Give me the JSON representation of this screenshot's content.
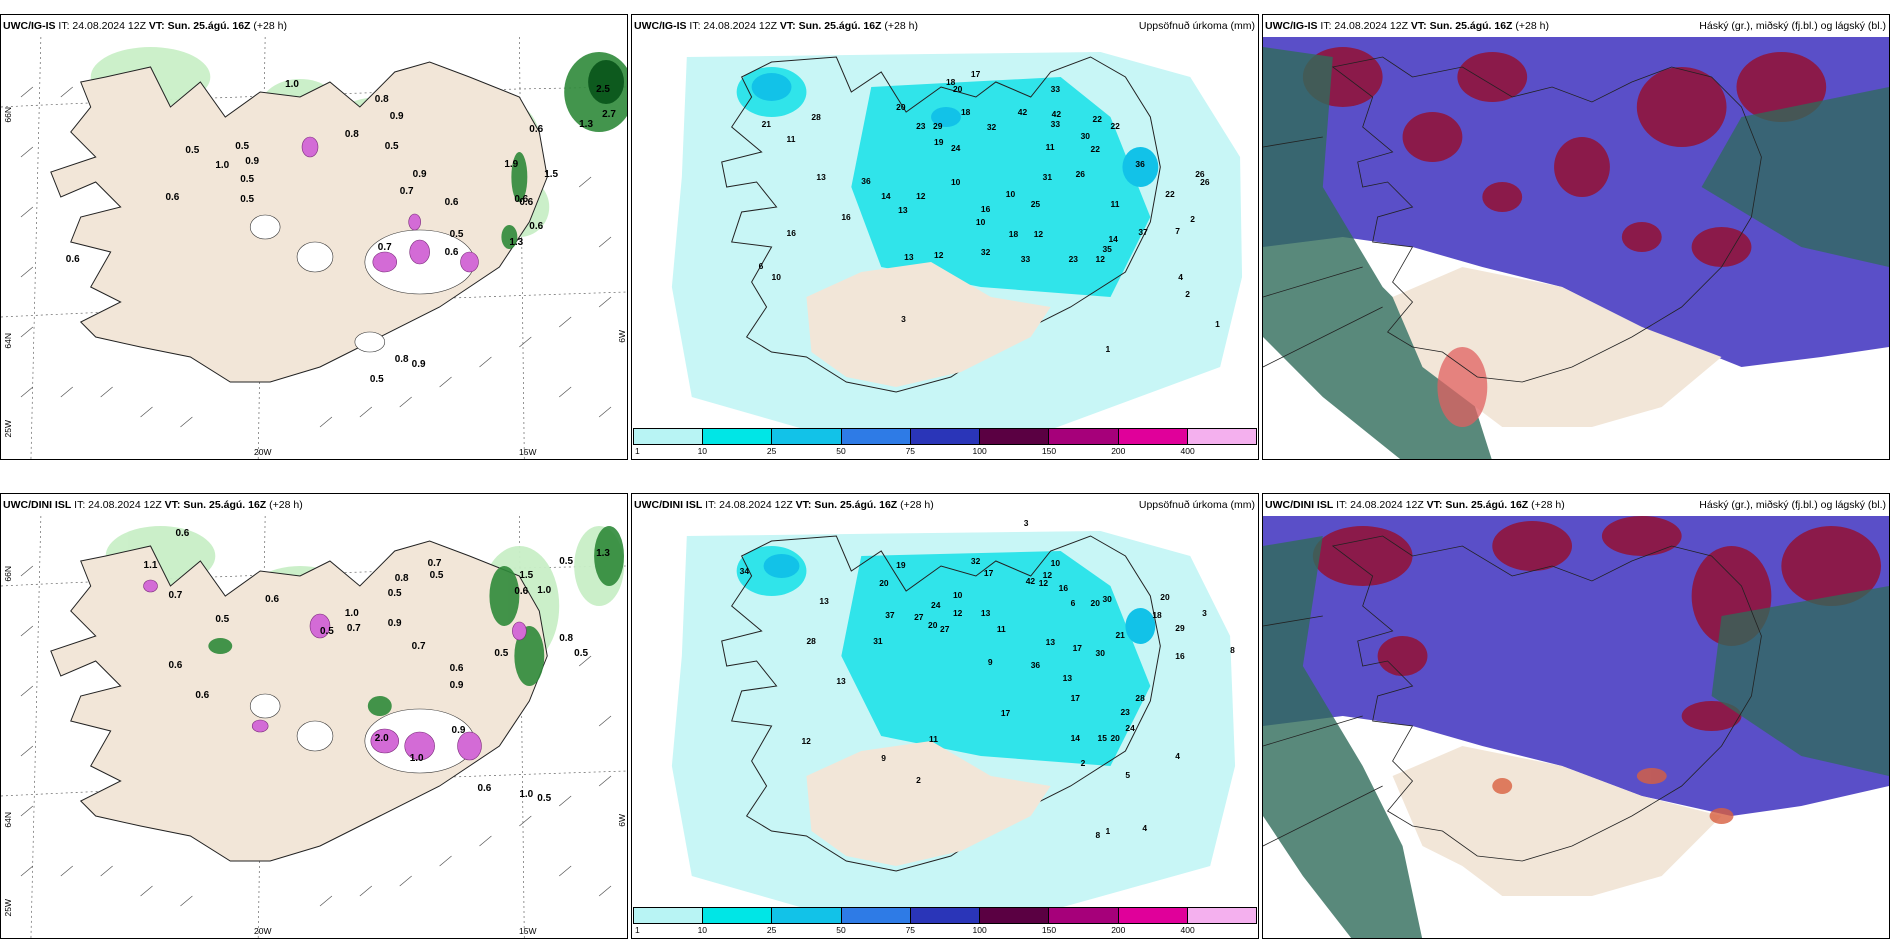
{
  "panels": {
    "p1": {
      "model": "UWC/IG-IS",
      "it": "IT: 24.08.2024 12Z",
      "vt_label": "VT:",
      "vt_value": "Sun. 25.ágú. 16Z",
      "lead": "(+28 h)",
      "right_title": ""
    },
    "p2": {
      "model": "UWC/IG-IS",
      "it": "IT: 24.08.2024 12Z",
      "vt_label": "VT:",
      "vt_value": "Sun. 25.ágú. 16Z",
      "lead": "(+28 h)",
      "right_title": "Uppsöfnuð úrkoma (mm)"
    },
    "p3": {
      "model": "UWC/IG-IS",
      "it": "IT: 24.08.2024 12Z",
      "vt_label": "VT:",
      "vt_value": "Sun. 25.ágú. 16Z",
      "lead": "(+28 h)",
      "right_title": "Háský (gr.), miðský (fj.bl.) og lágský (bl.)"
    },
    "p4": {
      "model": "UWC/DINI ISL",
      "it": "IT: 24.08.2024 12Z",
      "vt_label": "VT:",
      "vt_value": "Sun. 25.ágú. 16Z",
      "lead": "(+28 h)",
      "right_title": ""
    },
    "p5": {
      "model": "UWC/DINI ISL",
      "it": "IT: 24.08.2024 12Z",
      "vt_label": "VT:",
      "vt_value": "Sun. 25.ágú. 16Z",
      "lead": "(+28 h)",
      "right_title": "Uppsöfnuð úrkoma (mm)"
    },
    "p6": {
      "model": "UWC/DINI ISL",
      "it": "IT: 24.08.2024 12Z",
      "vt_label": "VT:",
      "vt_value": "Sun. 25.ágú. 16Z",
      "lead": "(+28 h)",
      "right_title": "Háský (gr.), miðský (fj.bl.) og lágský (bl.)"
    }
  },
  "axis_labels": {
    "lat66": "66N",
    "lat64": "64N",
    "lon25": "25W",
    "lon20": "20W",
    "lon15": "15W",
    "lon6": "6W"
  },
  "colorbar": {
    "ticks": [
      "1",
      "10",
      "25",
      "50",
      "75",
      "100",
      "150",
      "200",
      "400"
    ],
    "colors": [
      "#b8f4f4",
      "#00e6e6",
      "#12c2e8",
      "#2e7be6",
      "#2a35b8",
      "#5a0042",
      "#a6007a",
      "#e0009a",
      "#f4b0ee"
    ]
  },
  "colors": {
    "land": "#f2e6d8",
    "precip_light": "#c8f6f6",
    "precip_med": "#30e4ea",
    "high_cloud": "#8b1a4a",
    "mid_cloud": "#5a4fc8",
    "low_cloud": "#2f6b5a"
  },
  "p1_values": [
    "1.0",
    "0.8",
    "0.9",
    "0.5",
    "0.9",
    "0.5",
    "1.0",
    "0.5",
    "0.6",
    "0.5",
    "0.6",
    "0.7",
    "0.5",
    "0.8",
    "0.6",
    "0.6",
    "1.3",
    "0.7",
    "0.5",
    "0.6",
    "0.6",
    "0.9",
    "0.5",
    "0.8",
    "0.9",
    "1.5",
    "2.5",
    "2.7",
    "1.3",
    "1.9",
    "0.6",
    "0.6"
  ],
  "p2_values": [
    "17",
    "18",
    "20",
    "33",
    "42",
    "22",
    "28",
    "21",
    "11",
    "20",
    "23",
    "29",
    "18",
    "32",
    "19",
    "24",
    "42",
    "22",
    "33",
    "22",
    "11",
    "30",
    "36",
    "26",
    "36",
    "13",
    "10",
    "14",
    "12",
    "31",
    "26",
    "22",
    "25",
    "10",
    "11",
    "16",
    "13",
    "16",
    "10",
    "18",
    "12",
    "16",
    "32",
    "33",
    "23",
    "12",
    "14",
    "37",
    "35",
    "26",
    "13",
    "12",
    "6",
    "10",
    "2",
    "3",
    "4",
    "7",
    "1",
    "1",
    "2"
  ],
  "p4_values": [
    "0.6",
    "1.1",
    "0.7",
    "0.5",
    "0.6",
    "0.8",
    "0.5",
    "0.7",
    "0.6",
    "0.5",
    "0.9",
    "0.7",
    "0.9",
    "0.6",
    "0.6",
    "1.0",
    "0.5",
    "0.7",
    "0.5",
    "1.5",
    "0.8",
    "1.0",
    "0.9",
    "0.5",
    "2.0",
    "0.6",
    "1.0",
    "0.5",
    "1.3",
    "0.6",
    "1.0",
    "0.5"
  ],
  "p5_values": [
    "3",
    "34",
    "32",
    "19",
    "17",
    "20",
    "16",
    "10",
    "12",
    "20",
    "42",
    "13",
    "24",
    "10",
    "12",
    "13",
    "27",
    "20",
    "30",
    "18",
    "12",
    "37",
    "29",
    "21",
    "13",
    "11",
    "27",
    "31",
    "28",
    "20",
    "36",
    "17",
    "13",
    "13",
    "9",
    "30",
    "17",
    "28",
    "23",
    "20",
    "12",
    "17",
    "24",
    "15",
    "14",
    "16",
    "11",
    "9",
    "2",
    "4",
    "5",
    "8",
    "3",
    "2",
    "1",
    "6",
    "8",
    "4"
  ]
}
